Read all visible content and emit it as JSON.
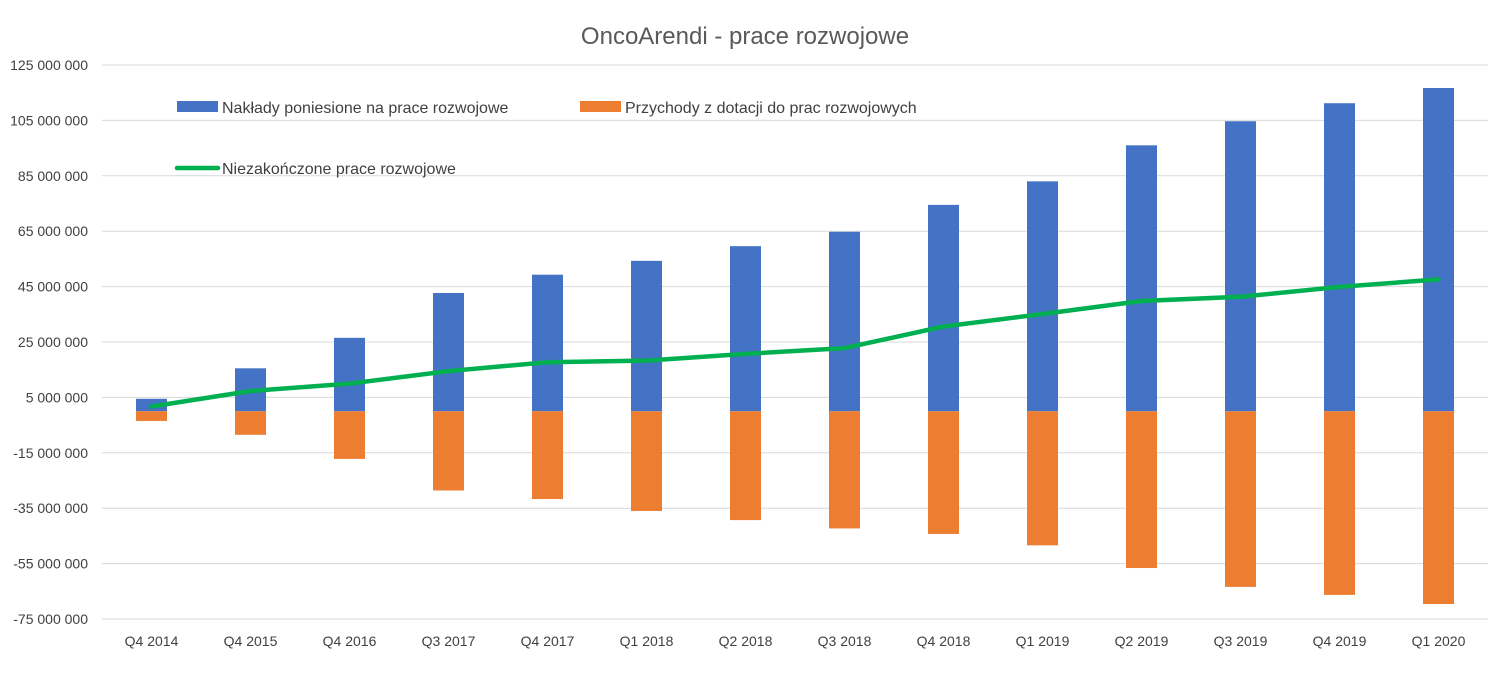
{
  "chart_data": {
    "type": "bar",
    "title": "OncoArendi - prace rozwojowe",
    "xlabel": "",
    "ylabel": "",
    "ylim": [
      -75000000,
      125000000
    ],
    "y_ticks": [
      125000000,
      105000000,
      85000000,
      65000000,
      45000000,
      25000000,
      5000000,
      -15000000,
      -35000000,
      -55000000,
      -75000000
    ],
    "y_tick_labels": [
      "125 000 000",
      "105 000 000",
      "85 000 000",
      "65 000 000",
      "45 000 000",
      "25 000 000",
      "5 000 000",
      "-15 000 000",
      "-35 000 000",
      "-55 000 000",
      "-75 000 000"
    ],
    "grid": true,
    "legend_position": "top-left",
    "categories": [
      "Q4 2014",
      "Q4 2015",
      "Q4 2016",
      "Q3 2017",
      "Q4 2017",
      "Q1 2018",
      "Q2 2018",
      "Q3 2018",
      "Q4 2018",
      "Q1 2019",
      "Q2 2019",
      "Q3 2019",
      "Q4 2019",
      "Q1 2020"
    ],
    "series": [
      {
        "name": "Nakłady poniesione na prace rozwojowe",
        "kind": "bar",
        "color": "#4472C4",
        "values": [
          4500000,
          15500000,
          26500000,
          42700000,
          49300000,
          54300000,
          59600000,
          64800000,
          74500000,
          83000000,
          96000000,
          104700000,
          111200000,
          116700000
        ]
      },
      {
        "name": "Przychody z dotacji do prac rozwojowych",
        "kind": "bar",
        "color": "#ED7D31",
        "values": [
          -3500000,
          -8500000,
          -17200000,
          -28600000,
          -31700000,
          -36000000,
          -39300000,
          -42300000,
          -44300000,
          -48400000,
          -56600000,
          -63400000,
          -66300000,
          -69600000
        ]
      },
      {
        "name": "Niezakończone prace rozwojowe",
        "kind": "line",
        "color": "#00B050",
        "values": [
          1700000,
          7300000,
          10000000,
          14500000,
          17700000,
          18300000,
          20700000,
          22800000,
          30600000,
          35100000,
          39800000,
          41300000,
          44900000,
          47600000
        ]
      }
    ]
  }
}
